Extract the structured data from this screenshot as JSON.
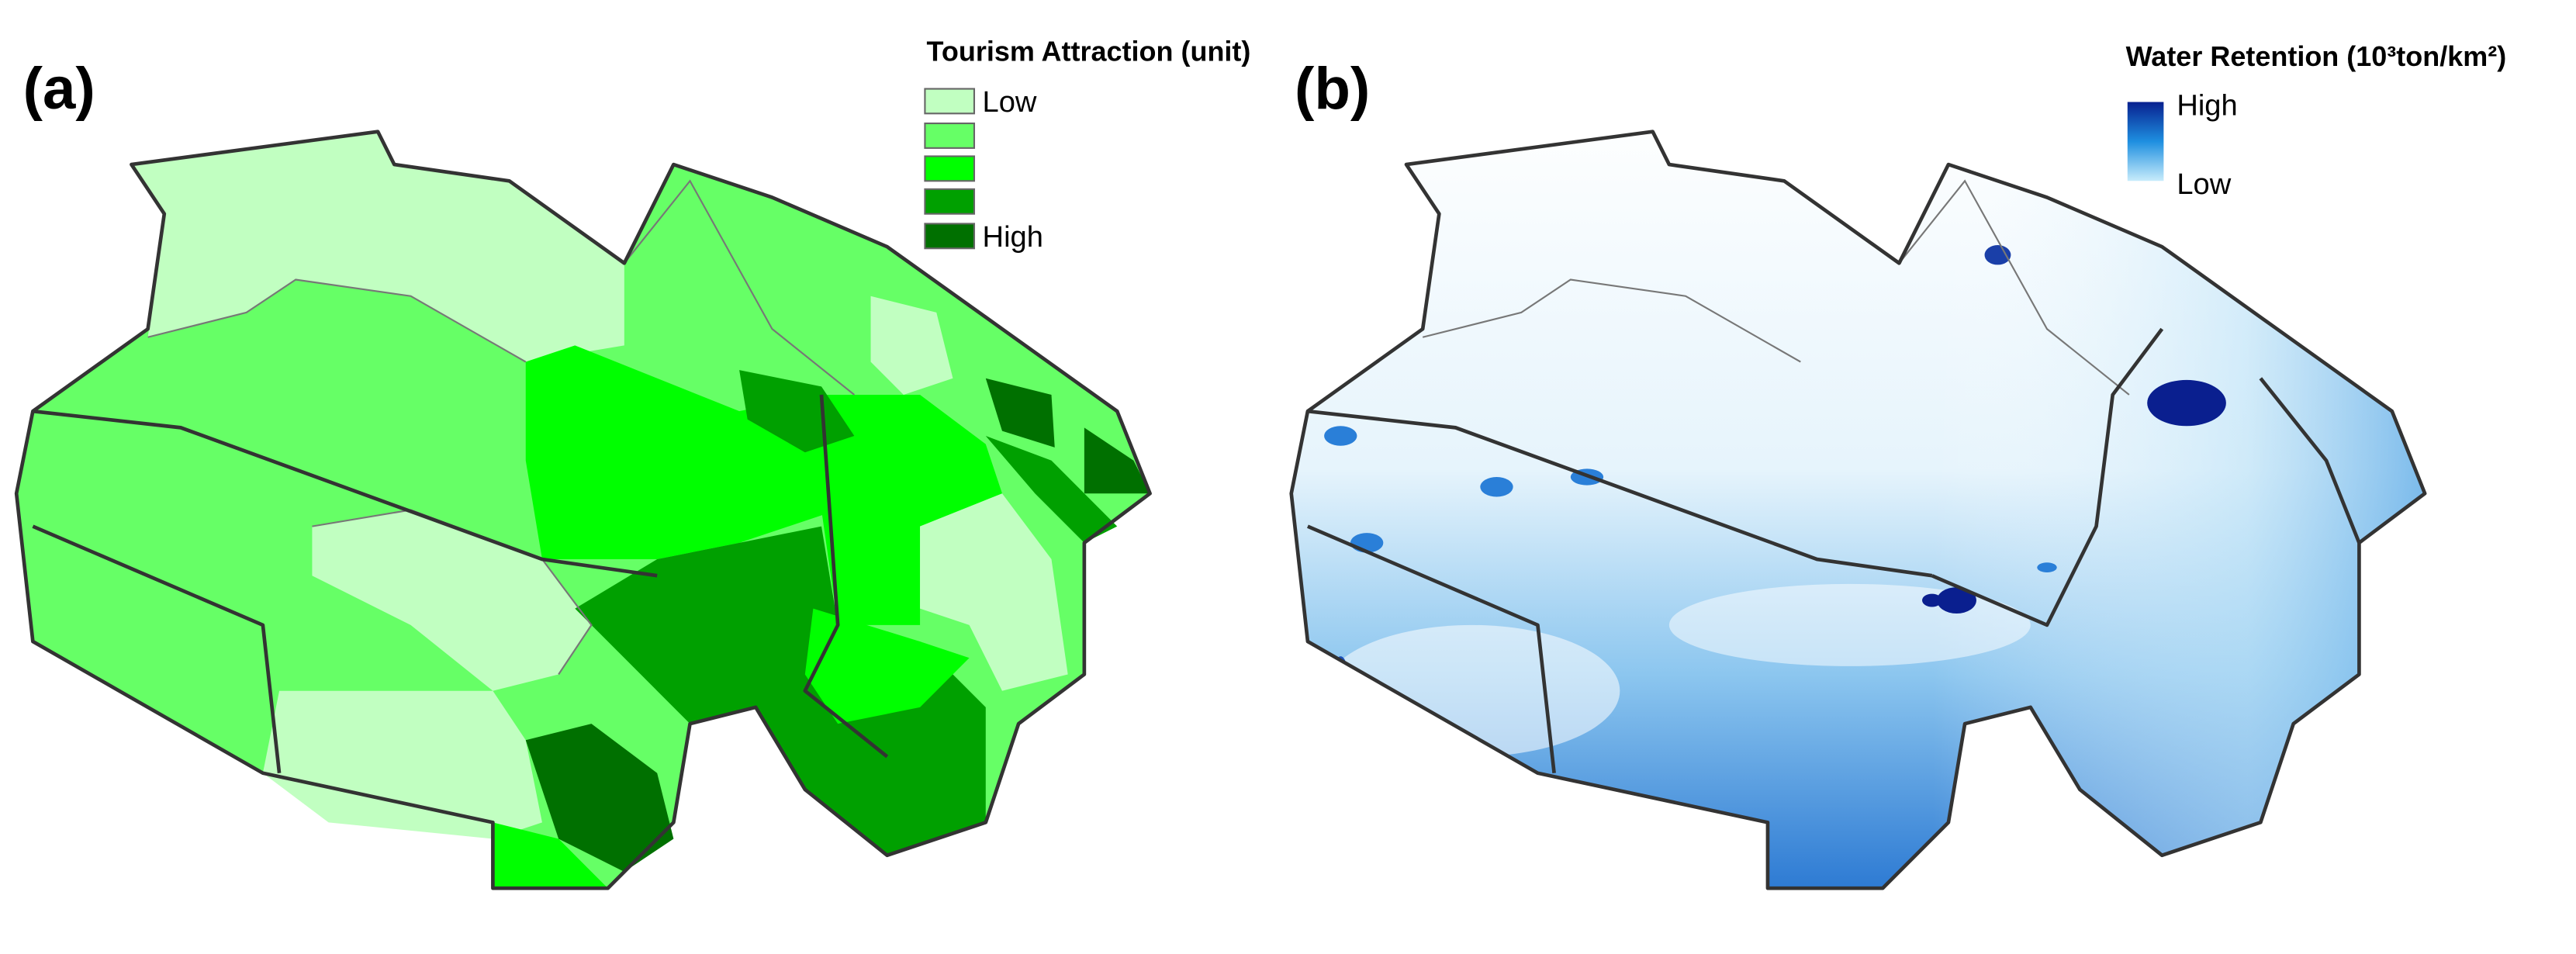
{
  "panel_a": {
    "label": "(a)",
    "legend": {
      "title": "Tourism Attraction (unit)",
      "low": "Low",
      "high": "High"
    }
  },
  "panel_b": {
    "label": "(b)",
    "legend": {
      "title": "Water Retention (10³ton/km²)",
      "high": "High",
      "low": "Low"
    }
  }
}
